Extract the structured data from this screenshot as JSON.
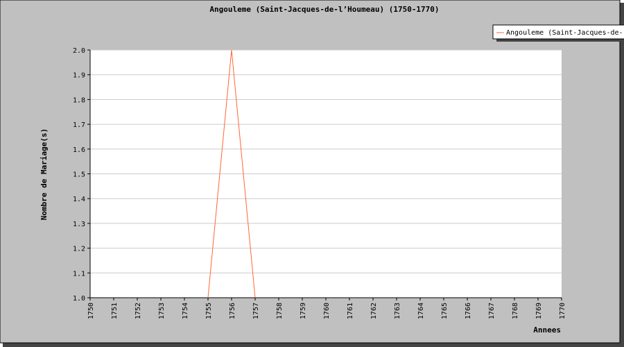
{
  "chart_data": {
    "type": "line",
    "title": "Angouleme (Saint-Jacques-de-l’Houmeau) (1750-1770)",
    "xlabel": "Annees",
    "ylabel": "Nombre de Mariage(s)",
    "x": [
      1750,
      1751,
      1752,
      1753,
      1754,
      1755,
      1756,
      1757,
      1758,
      1759,
      1760,
      1761,
      1762,
      1763,
      1764,
      1765,
      1766,
      1767,
      1768,
      1769,
      1770
    ],
    "xlim": [
      1750,
      1770
    ],
    "ylim": [
      1.0,
      2.0
    ],
    "yticks": [
      "1.0",
      "1.1",
      "1.2",
      "1.3",
      "1.4",
      "1.5",
      "1.6",
      "1.7",
      "1.8",
      "1.9",
      "2.0"
    ],
    "grid": true,
    "legend_position": "top-right",
    "series": [
      {
        "name": "Angouleme (Saint-Jacques-de-",
        "color": "#ff6633",
        "points": [
          {
            "x": 1755,
            "y": 1.0
          },
          {
            "x": 1756,
            "y": 2.0
          },
          {
            "x": 1757,
            "y": 1.0
          }
        ]
      }
    ]
  },
  "colors": {
    "background": "#c0c0c0",
    "plot_background": "#ffffff",
    "grid": "#cccccc",
    "shadow": "#444444"
  }
}
